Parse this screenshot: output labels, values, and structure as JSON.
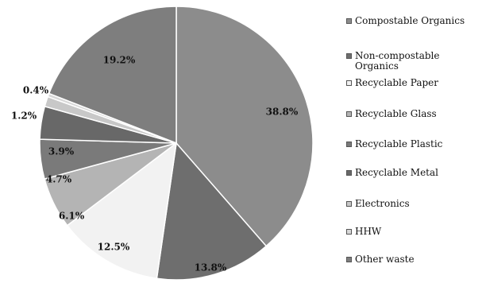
{
  "chart_data": {
    "type": "pie",
    "title": "",
    "slices": [
      {
        "label": "Compostable Organics",
        "value": 38.8,
        "value_label": "38.8%",
        "color": "#8c8c8c"
      },
      {
        "label": "Non-compostable Organics",
        "value": 13.8,
        "value_label": "13.8%",
        "color": "#6e6e6e"
      },
      {
        "label": "Recyclable Paper",
        "value": 12.5,
        "value_label": "12.5%",
        "color": "#f2f2f2"
      },
      {
        "label": "Recyclable Glass",
        "value": 6.1,
        "value_label": "6.1%",
        "color": "#b4b4b4"
      },
      {
        "label": "Recyclable Plastic",
        "value": 4.7,
        "value_label": "4.7%",
        "color": "#7a7a7a"
      },
      {
        "label": "Recyclable Metal",
        "value": 3.9,
        "value_label": "3.9%",
        "color": "#686868"
      },
      {
        "label": "Electronics",
        "value": 1.2,
        "value_label": "1.2%",
        "color": "#c8c8c8"
      },
      {
        "label": "HHW",
        "value": 0.4,
        "value_label": "0.4%",
        "color": "#d8d8d8"
      },
      {
        "label": "Other waste",
        "value": 19.2,
        "value_label": "19.2%",
        "color": "#7e7e7e"
      }
    ],
    "legend_placement": "right"
  }
}
